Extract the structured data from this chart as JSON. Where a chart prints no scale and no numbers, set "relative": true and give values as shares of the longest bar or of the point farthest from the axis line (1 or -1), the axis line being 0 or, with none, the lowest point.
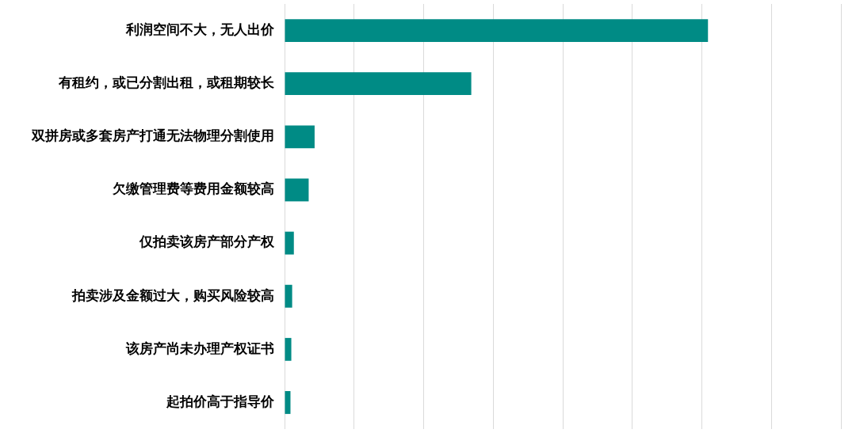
{
  "chart_data": {
    "type": "bar",
    "orientation": "horizontal",
    "relative": true,
    "categories": [
      "利润空间不大，无人出价",
      "有租约，或已分割出租，或租期较长",
      "双拼房或多套房产打通无法物理分割使用",
      "欠缴管理费等费用金额较高",
      "仅拍卖该房产部分产权",
      "拍卖涉及金额过大，购买风险较高",
      "该房产尚未办理产权证书",
      "起拍价高于指导价"
    ],
    "values": [
      1,
      0.441,
      0.071,
      0.057,
      0.022,
      0.018,
      0.016,
      0.014
    ],
    "color": "#008b85",
    "grid": "x"
  }
}
